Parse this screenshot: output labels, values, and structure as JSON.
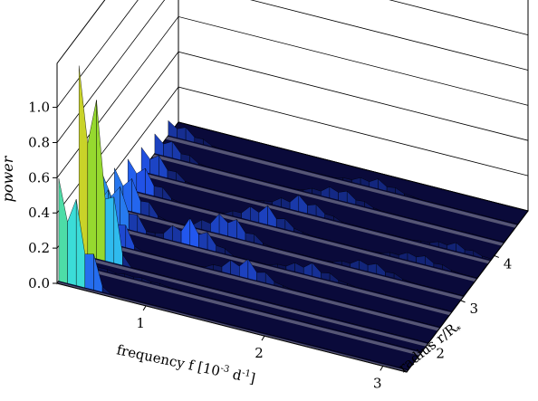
{
  "chart_data": {
    "type": "surface",
    "title": "",
    "zlabel": "power",
    "xlabel_text": "frequency f [10",
    "xlabel_exp1": "-3",
    "xlabel_unit": " d",
    "xlabel_exp2": "-1",
    "xlabel_close": "]",
    "ylabel_text": "radius r/R",
    "ylabel_sub": "*",
    "z_ticks": [
      "0.0",
      "0.2",
      "0.4",
      "0.6",
      "0.8",
      "1.0"
    ],
    "z_tick_values": [
      0.0,
      0.2,
      0.4,
      0.6,
      0.8,
      1.0
    ],
    "x_ticks": [
      "1",
      "2",
      "3"
    ],
    "x_tick_values": [
      1,
      2,
      3
    ],
    "y_ticks": [
      "2",
      "3",
      "4"
    ],
    "y_tick_values": [
      2,
      3,
      4
    ],
    "zlim": [
      0,
      1.25
    ],
    "xlim": [
      0.25,
      3.2
    ],
    "ylim": [
      1.4,
      5.0
    ],
    "grid": true,
    "radius_profiles": [
      {
        "radius": 1.45,
        "peaks": [
          {
            "frequency": 0.3,
            "power": 0.68
          }
        ]
      },
      {
        "radius": 1.85,
        "peaks": [
          {
            "frequency": 0.3,
            "power": 0.05
          },
          {
            "frequency": 0.8,
            "power": 0.02
          }
        ]
      },
      {
        "radius": 2.05,
        "peaks": [
          {
            "frequency": 0.3,
            "power": 1.25
          }
        ]
      },
      {
        "radius": 2.4,
        "peaks": [
          {
            "frequency": 0.3,
            "power": 0.42
          },
          {
            "frequency": 1.55,
            "power": 0.12
          }
        ]
      },
      {
        "radius": 2.75,
        "peaks": [
          {
            "frequency": 0.3,
            "power": 0.32
          },
          {
            "frequency": 1.0,
            "power": 0.16
          },
          {
            "frequency": 2.0,
            "power": 0.08
          }
        ]
      },
      {
        "radius": 3.1,
        "peaks": [
          {
            "frequency": 0.3,
            "power": 0.26
          },
          {
            "frequency": 1.2,
            "power": 0.14
          },
          {
            "frequency": 2.4,
            "power": 0.07
          }
        ]
      },
      {
        "radius": 3.5,
        "peaks": [
          {
            "frequency": 0.3,
            "power": 0.2
          },
          {
            "frequency": 1.4,
            "power": 0.12
          },
          {
            "frequency": 2.7,
            "power": 0.06
          }
        ]
      },
      {
        "radius": 3.9,
        "peaks": [
          {
            "frequency": 0.3,
            "power": 0.16
          },
          {
            "frequency": 1.6,
            "power": 0.1
          },
          {
            "frequency": 2.9,
            "power": 0.05
          }
        ]
      },
      {
        "radius": 4.3,
        "peaks": [
          {
            "frequency": 0.3,
            "power": 0.13
          },
          {
            "frequency": 1.8,
            "power": 0.08
          }
        ]
      },
      {
        "radius": 4.7,
        "peaks": [
          {
            "frequency": 0.3,
            "power": 0.1
          },
          {
            "frequency": 2.0,
            "power": 0.06
          }
        ]
      }
    ],
    "colors": {
      "low": "#0a0a3a",
      "blue": "#2255ee",
      "cyan": "#33ddee",
      "green": "#77dd33",
      "yellow": "#ffcc22",
      "grid": "#000000",
      "gap": "#e6e6e6"
    }
  }
}
